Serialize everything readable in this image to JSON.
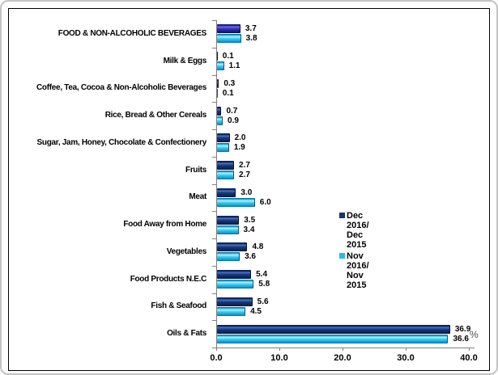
{
  "chart_data": {
    "type": "bar",
    "orientation": "horizontal",
    "title": "",
    "xlabel": "%",
    "ylabel": "",
    "xlim": [
      0,
      40
    ],
    "xtick_labels": [
      "0.0",
      "10.0",
      "20.0",
      "30.0",
      "40.0"
    ],
    "xtick_values": [
      0,
      10,
      20,
      30,
      40
    ],
    "grid": false,
    "legend_position": "right",
    "categories": [
      "FOOD & NON-ALCOHOLIC BEVERAGES",
      "Milk & Eggs",
      "Coffee, Tea, Cocoa & Non-Alcoholic Beverages",
      "Rice, Bread & Other Cereals",
      "Sugar, Jam, Honey, Chocolate & Confectionery",
      "Fruits",
      "Meat",
      "Food Away from Home",
      "Vegetables",
      "Food Products N.E.C",
      "Fish & Seafood",
      "Oils & Fats"
    ],
    "series": [
      {
        "name": "Dec 2016/ Dec 2015",
        "color": "#17356b",
        "first_bar_color": "#3e3ec6",
        "values": [
          3.7,
          0.1,
          0.3,
          0.7,
          2.0,
          2.7,
          3.0,
          3.5,
          4.8,
          5.4,
          5.6,
          36.9
        ]
      },
      {
        "name": "Nov 2016/ Nov 2015",
        "color": "#29b8e8",
        "values": [
          3.8,
          1.1,
          0.1,
          0.9,
          1.9,
          2.7,
          6.0,
          3.4,
          3.6,
          5.8,
          4.5,
          36.6
        ]
      }
    ]
  },
  "legend": {
    "items": [
      {
        "line1": "Dec 2016/",
        "line2": "Dec 2015",
        "color": "#17356b"
      },
      {
        "line1": "Nov 2016/",
        "line2": "Nov 2015",
        "color": "#29b8e8"
      }
    ]
  },
  "axis": {
    "unit_label": "%"
  }
}
